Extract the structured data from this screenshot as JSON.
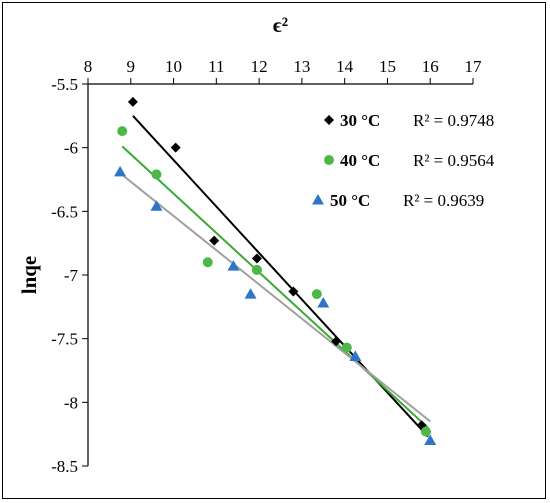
{
  "chart_data": {
    "type": "scatter",
    "title": "",
    "xlabel": "ϵ²",
    "ylabel": "lnqe",
    "xlim": [
      8,
      17
    ],
    "ylim": [
      -8.5,
      -5.5
    ],
    "x_ticks": [
      8,
      9,
      10,
      11,
      12,
      13,
      14,
      15,
      16,
      17
    ],
    "y_ticks": [
      -5.5,
      -6,
      -6.5,
      -7,
      -7.5,
      -8,
      -8.5
    ],
    "x_axis_position": "top",
    "grid": false,
    "legend_position": "top-right",
    "trendlines": true,
    "series": [
      {
        "name": "30 °C",
        "r2_label": "R² = 0.9748",
        "marker": "diamond",
        "color": "#000000",
        "line_color": "#000000",
        "points": [
          [
            9.05,
            -5.64
          ],
          [
            10.05,
            -6.0
          ],
          [
            10.95,
            -6.73
          ],
          [
            11.95,
            -6.87
          ],
          [
            12.8,
            -7.13
          ],
          [
            13.8,
            -7.52
          ],
          [
            15.8,
            -8.18
          ]
        ],
        "trend": [
          [
            9.05,
            -5.75
          ],
          [
            15.95,
            -8.27
          ]
        ]
      },
      {
        "name": "40 °C",
        "r2_label": "R² = 0.9564",
        "marker": "circle",
        "color": "#4db848",
        "line_color": "#3aaa35",
        "points": [
          [
            8.8,
            -5.87
          ],
          [
            9.6,
            -6.21
          ],
          [
            10.8,
            -6.9
          ],
          [
            11.95,
            -6.96
          ],
          [
            13.35,
            -7.15
          ],
          [
            14.05,
            -7.57
          ],
          [
            15.9,
            -8.23
          ]
        ],
        "trend": [
          [
            8.8,
            -5.99
          ],
          [
            15.95,
            -8.2
          ]
        ]
      },
      {
        "name": "50 °C",
        "r2_label": "R² = 0.9639",
        "marker": "triangle",
        "color": "#2e75c9",
        "line_color": "#a0a0a0",
        "points": [
          [
            8.75,
            -6.19
          ],
          [
            9.6,
            -6.46
          ],
          [
            11.4,
            -6.93
          ],
          [
            11.8,
            -7.15
          ],
          [
            13.5,
            -7.22
          ],
          [
            14.25,
            -7.64
          ],
          [
            16.0,
            -8.3
          ]
        ],
        "trend": [
          [
            8.75,
            -6.2
          ],
          [
            16.0,
            -8.15
          ]
        ]
      }
    ]
  }
}
